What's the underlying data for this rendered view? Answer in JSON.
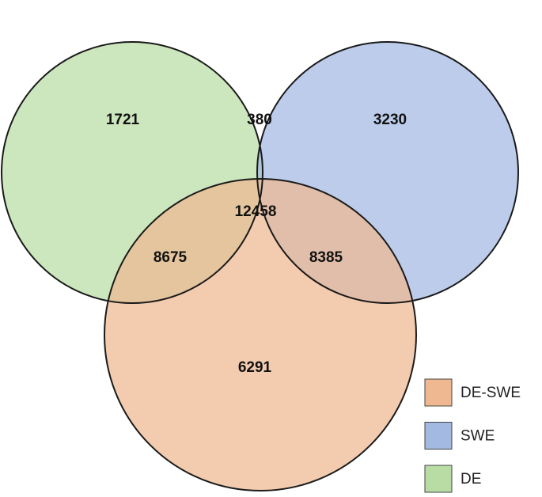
{
  "chart_data": {
    "type": "venn",
    "series": [
      {
        "name": "DE",
        "color": "#b9dca5"
      },
      {
        "name": "SWE",
        "color": "#a3b9e2"
      },
      {
        "name": "DE-SWE",
        "color": "#efb890"
      }
    ],
    "regions": [
      {
        "sets": [
          0
        ],
        "value": 1721
      },
      {
        "sets": [
          0,
          1
        ],
        "value": 380
      },
      {
        "sets": [
          1
        ],
        "value": 3230
      },
      {
        "sets": [
          0,
          1,
          2
        ],
        "value": 12458
      },
      {
        "sets": [
          0,
          2
        ],
        "value": 8675
      },
      {
        "sets": [
          1,
          2
        ],
        "value": 8385
      },
      {
        "sets": [
          2
        ],
        "value": 6291
      }
    ]
  }
}
